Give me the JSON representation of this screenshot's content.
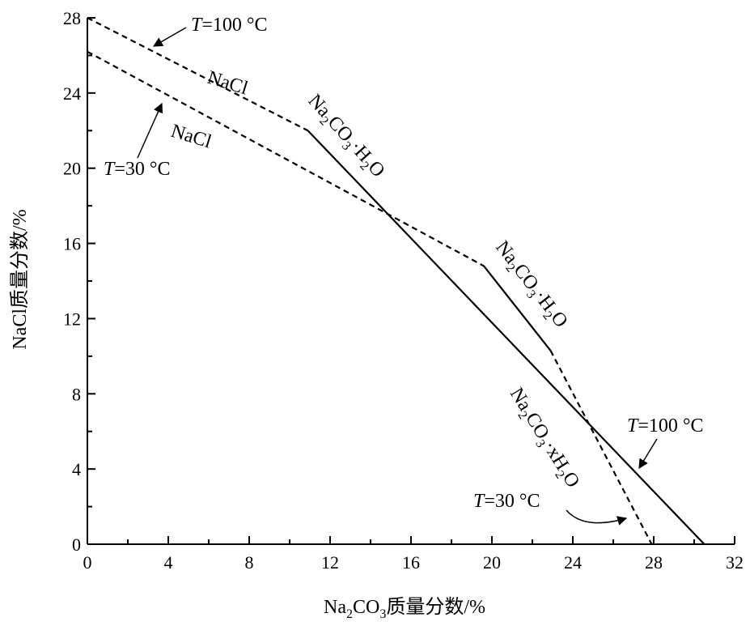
{
  "chart_data": {
    "type": "line",
    "xlabel": {
      "main": "Na",
      "sub": "2",
      "rest": "CO",
      "sub2": "3",
      "tail": "质量分数/%"
    },
    "ylabel": "NaCl质量分数/%",
    "xlim": [
      0,
      32
    ],
    "ylim": [
      0,
      28
    ],
    "x_ticks": [
      0,
      4,
      8,
      12,
      16,
      20,
      24,
      28,
      32
    ],
    "y_ticks": [
      0,
      4,
      8,
      12,
      16,
      20,
      24,
      28
    ],
    "grid": false,
    "series": [
      {
        "label_ref": "T=100 °C",
        "style": "mixed",
        "segments": [
          {
            "style": "dashed",
            "phase": "NaCl",
            "points": [
              [
                0,
                28.0
              ],
              [
                10.9,
                22.0
              ]
            ]
          },
          {
            "style": "solid",
            "phase": "Na2CO3·H2O",
            "points": [
              [
                10.9,
                22.0
              ],
              [
                30.5,
                0.0
              ]
            ]
          }
        ]
      },
      {
        "label_ref": "T=30 °C",
        "style": "mixed",
        "segments": [
          {
            "style": "dashed",
            "phase": "NaCl",
            "points": [
              [
                0,
                26.2
              ],
              [
                19.6,
                14.8
              ]
            ]
          },
          {
            "style": "solid",
            "phase": "Na2CO3·H2O",
            "points": [
              [
                19.6,
                14.8
              ],
              [
                22.9,
                10.3
              ]
            ]
          },
          {
            "style": "dashed",
            "phase": "Na2CO3·xH2O",
            "points": [
              [
                22.9,
                10.3
              ],
              [
                27.9,
                0.0
              ]
            ]
          }
        ]
      }
    ],
    "annotations": {
      "t100_top": {
        "T": "T",
        "rest": "=100 °C"
      },
      "nacl_top": "NaCl",
      "nacl_mid": "NaCl",
      "t30_left": {
        "T": "T",
        "rest": "=30 °C"
      },
      "h2o_upper": {
        "a": "Na",
        "b": "2",
        "c": "CO",
        "d": "3",
        "e": "·H",
        "f": "2",
        "g": "O"
      },
      "h2o_mid": {
        "a": "Na",
        "b": "2",
        "c": "CO",
        "d": "3",
        "e": "·H",
        "f": "2",
        "g": "O"
      },
      "xh2o": {
        "a": "Na",
        "b": "2",
        "c": "CO",
        "d": "3",
        "e": "·xH",
        "f": "2",
        "g": "O"
      },
      "t100_right": {
        "T": "T",
        "rest": "=100 °C"
      },
      "t30_bottom": {
        "T": "T",
        "rest": "=30 °C"
      }
    }
  }
}
